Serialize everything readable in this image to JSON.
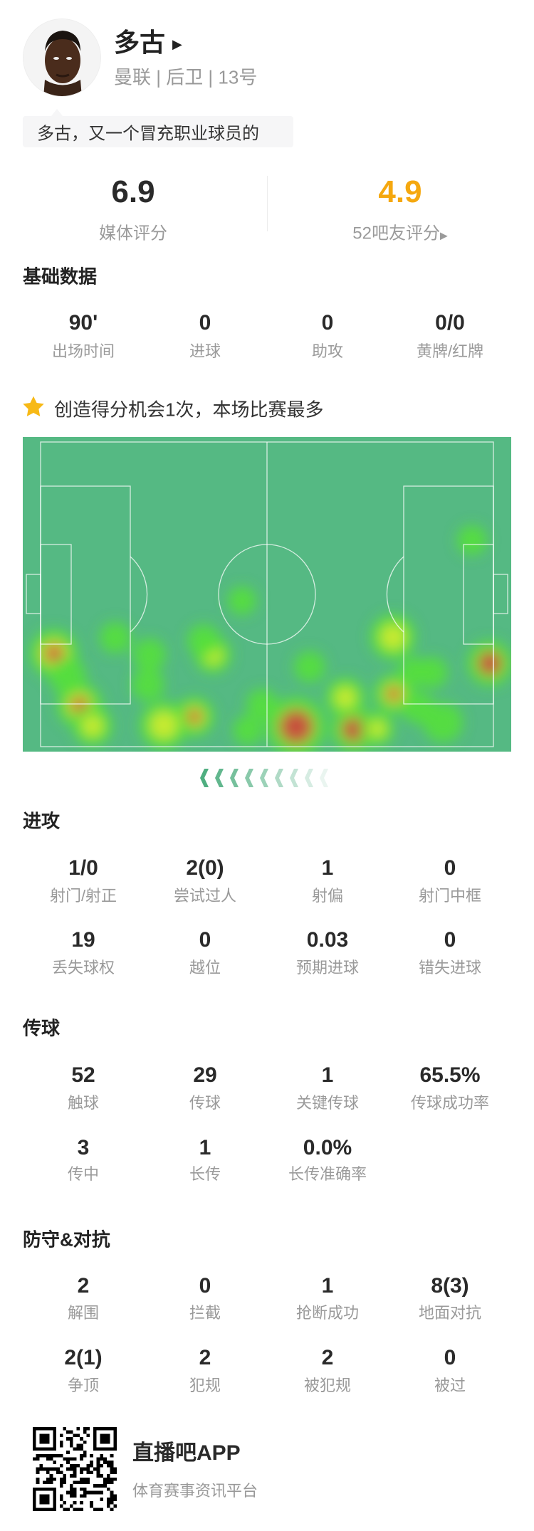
{
  "player": {
    "name": "多古",
    "subtitle": "曼联 | 后卫 | 13号",
    "comment": "多古，又一个冒充职业球员的"
  },
  "ratings": {
    "media_value": "6.9",
    "media_label": "媒体评分",
    "fan_value": "4.9",
    "fan_label": "52吧友评分",
    "fan_color": "#f5a80f"
  },
  "basic": {
    "title": "基础数据",
    "stats": [
      {
        "value": "90'",
        "label": "出场时间"
      },
      {
        "value": "0",
        "label": "进球"
      },
      {
        "value": "0",
        "label": "助攻"
      },
      {
        "value": "0/0",
        "label": "黄牌/红牌"
      }
    ]
  },
  "highlight": {
    "icon": "star-icon",
    "text": "创造得分机会1次，本场比赛最多",
    "icon_color": "#f7b916"
  },
  "heatmap": {
    "pitch_color": "#55b983",
    "attack_direction": "left"
  },
  "attack": {
    "title": "进攻",
    "stats": [
      {
        "value": "1/0",
        "label": "射门/射正"
      },
      {
        "value": "2(0)",
        "label": "尝试过人"
      },
      {
        "value": "1",
        "label": "射偏"
      },
      {
        "value": "0",
        "label": "射门中框"
      },
      {
        "value": "19",
        "label": "丢失球权"
      },
      {
        "value": "0",
        "label": "越位"
      },
      {
        "value": "0.03",
        "label": "预期进球"
      },
      {
        "value": "0",
        "label": "错失进球"
      }
    ]
  },
  "passing": {
    "title": "传球",
    "stats": [
      {
        "value": "52",
        "label": "触球"
      },
      {
        "value": "29",
        "label": "传球"
      },
      {
        "value": "1",
        "label": "关键传球"
      },
      {
        "value": "65.5%",
        "label": "传球成功率"
      },
      {
        "value": "3",
        "label": "传中"
      },
      {
        "value": "1",
        "label": "长传"
      },
      {
        "value": "0.0%",
        "label": "长传准确率"
      }
    ]
  },
  "defense": {
    "title": "防守&对抗",
    "stats": [
      {
        "value": "2",
        "label": "解围"
      },
      {
        "value": "0",
        "label": "拦截"
      },
      {
        "value": "1",
        "label": "抢断成功"
      },
      {
        "value": "8(3)",
        "label": "地面对抗"
      },
      {
        "value": "2(1)",
        "label": "争顶"
      },
      {
        "value": "2",
        "label": "犯规"
      },
      {
        "value": "2",
        "label": "被犯规"
      },
      {
        "value": "0",
        "label": "被过"
      }
    ]
  },
  "footer": {
    "app_name": "直播吧APP",
    "tagline": "体育赛事资讯平台"
  }
}
